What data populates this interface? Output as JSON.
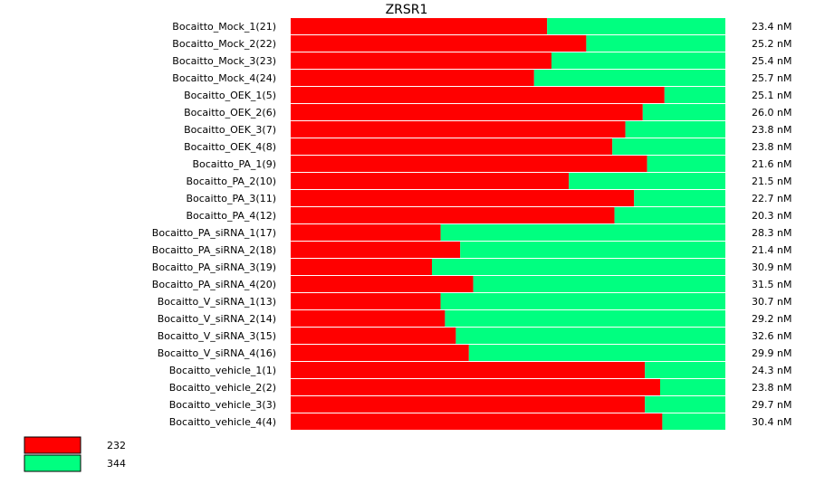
{
  "chart_data": {
    "type": "bar",
    "stacked": true,
    "normalized": true,
    "orientation": "horizontal",
    "title": "ZRSR1",
    "categories": [
      "Bocaitto_Mock_1(21)",
      "Bocaitto_Mock_2(22)",
      "Bocaitto_Mock_3(23)",
      "Bocaitto_Mock_4(24)",
      "Bocaitto_OEK_1(5)",
      "Bocaitto_OEK_2(6)",
      "Bocaitto_OEK_3(7)",
      "Bocaitto_OEK_4(8)",
      "Bocaitto_PA_1(9)",
      "Bocaitto_PA_2(10)",
      "Bocaitto_PA_3(11)",
      "Bocaitto_PA_4(12)",
      "Bocaitto_PA_siRNA_1(17)",
      "Bocaitto_PA_siRNA_2(18)",
      "Bocaitto_PA_siRNA_3(19)",
      "Bocaitto_PA_siRNA_4(20)",
      "Bocaitto_V_siRNA_1(13)",
      "Bocaitto_V_siRNA_2(14)",
      "Bocaitto_V_siRNA_3(15)",
      "Bocaitto_V_siRNA_4(16)",
      "Bocaitto_vehicle_1(1)",
      "Bocaitto_vehicle_2(2)",
      "Bocaitto_vehicle_3(3)",
      "Bocaitto_vehicle_4(4)"
    ],
    "series": [
      {
        "name": "232",
        "color": "#ff0000",
        "values": [
          0.59,
          0.68,
          0.6,
          0.56,
          0.86,
          0.81,
          0.77,
          0.74,
          0.82,
          0.64,
          0.79,
          0.745,
          0.345,
          0.39,
          0.325,
          0.42,
          0.345,
          0.355,
          0.38,
          0.41,
          0.815,
          0.85,
          0.815,
          0.855
        ]
      },
      {
        "name": "344",
        "color": "#00ff80",
        "values": [
          0.41,
          0.32,
          0.4,
          0.44,
          0.14,
          0.19,
          0.23,
          0.26,
          0.18,
          0.36,
          0.21,
          0.255,
          0.655,
          0.61,
          0.675,
          0.58,
          0.655,
          0.645,
          0.62,
          0.59,
          0.185,
          0.15,
          0.185,
          0.145
        ]
      }
    ],
    "right_labels": [
      "23.4 nM",
      "25.2 nM",
      "25.4 nM",
      "25.7 nM",
      "25.1 nM",
      "26.0 nM",
      "23.8 nM",
      "23.8 nM",
      "21.6 nM",
      "21.5 nM",
      "22.7 nM",
      "20.3 nM",
      "28.3 nM",
      "21.4 nM",
      "30.9 nM",
      "31.5 nM",
      "30.7 nM",
      "29.2 nM",
      "32.6 nM",
      "29.9 nM",
      "24.3 nM",
      "23.8 nM",
      "29.7 nM",
      "30.4 nM"
    ],
    "legend_position": "bottom-left"
  }
}
